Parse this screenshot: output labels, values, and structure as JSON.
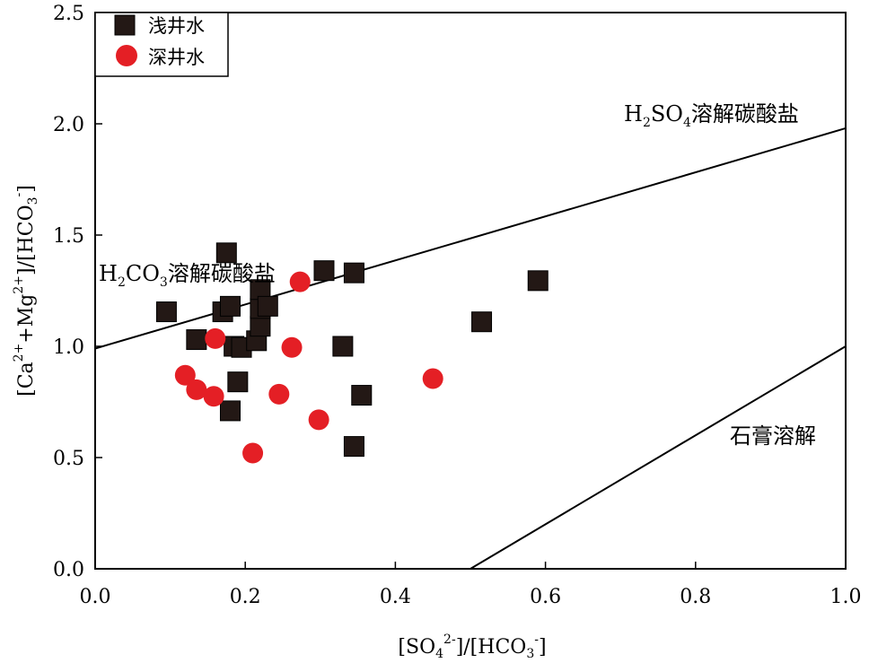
{
  "chart_data": {
    "type": "scatter",
    "xlabel": {
      "prefix": "[SO",
      "sub": "4",
      "sup": "2-",
      "suffix": "]/[HCO",
      "sub2": "3",
      "sup2": "-",
      "end": "]"
    },
    "ylabel": {
      "prefix": "[Ca",
      "sup": "2+",
      "mid": "+Mg",
      "sup2": "2+",
      "suffix": "]/[HCO",
      "sub": "3",
      "sup3": "-",
      "end": "]"
    },
    "xlim": [
      0.0,
      1.0
    ],
    "ylim": [
      0.0,
      2.5
    ],
    "xticks": [
      "0.0",
      "0.2",
      "0.4",
      "0.6",
      "0.8",
      "1.0"
    ],
    "yticks": [
      "0.0",
      "0.5",
      "1.0",
      "1.5",
      "2.0",
      "2.5"
    ],
    "grid": false,
    "legend_position": "top-left",
    "series": [
      {
        "name": "浅井水",
        "marker": "square",
        "color": "#231815",
        "points": [
          [
            0.095,
            1.155
          ],
          [
            0.135,
            1.03
          ],
          [
            0.17,
            1.155
          ],
          [
            0.175,
            1.42
          ],
          [
            0.18,
            1.18
          ],
          [
            0.18,
            0.71
          ],
          [
            0.185,
            1.0
          ],
          [
            0.19,
            0.84
          ],
          [
            0.195,
            0.995
          ],
          [
            0.215,
            1.025
          ],
          [
            0.22,
            1.09
          ],
          [
            0.22,
            1.17
          ],
          [
            0.22,
            1.255
          ],
          [
            0.23,
            1.18
          ],
          [
            0.305,
            1.34
          ],
          [
            0.33,
            1.0
          ],
          [
            0.345,
            1.33
          ],
          [
            0.345,
            0.55
          ],
          [
            0.355,
            0.78
          ],
          [
            0.515,
            1.11
          ],
          [
            0.59,
            1.295
          ]
        ]
      },
      {
        "name": "深井水",
        "marker": "circle",
        "color": "#e41f25",
        "points": [
          [
            0.12,
            0.87
          ],
          [
            0.135,
            0.805
          ],
          [
            0.158,
            0.775
          ],
          [
            0.16,
            1.035
          ],
          [
            0.21,
            0.52
          ],
          [
            0.245,
            0.785
          ],
          [
            0.262,
            0.995
          ],
          [
            0.273,
            1.29
          ],
          [
            0.298,
            0.67
          ],
          [
            0.45,
            0.855
          ]
        ]
      }
    ],
    "reference_lines": [
      {
        "name": "h2so4-line",
        "from": [
          0.0,
          0.99
        ],
        "to": [
          1.0,
          1.98
        ]
      },
      {
        "name": "gypsum-line",
        "from": [
          0.5,
          0.0
        ],
        "to": [
          1.0,
          1.0
        ]
      }
    ],
    "annotations": {
      "h2so4": {
        "pre": "H",
        "sub": "2",
        "mid": "SO",
        "sub2": "4",
        "post": "溶解碳酸盐"
      },
      "h2co3": {
        "pre": "H",
        "sub": "2",
        "mid": "CO",
        "sub2": "3",
        "post": "溶解碳酸盐"
      },
      "gypsum": "石膏溶解"
    }
  }
}
